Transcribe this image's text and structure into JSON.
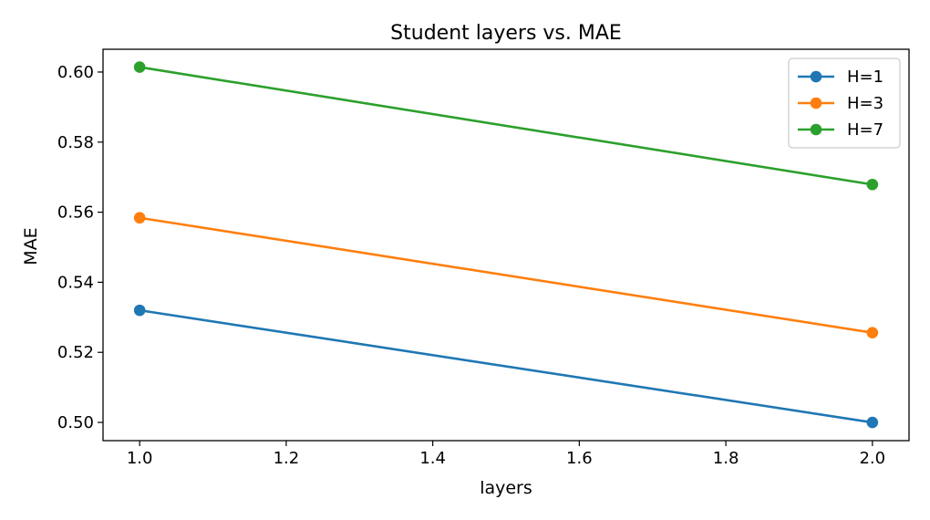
{
  "chart_data": {
    "type": "line",
    "title": "Student layers vs. MAE",
    "xlabel": "layers",
    "ylabel": "MAE",
    "x": [
      1.0,
      2.0
    ],
    "xlim": [
      0.95,
      2.05
    ],
    "ylim": [
      0.4948,
      0.6065
    ],
    "xticks": [
      1.0,
      1.2,
      1.4,
      1.6,
      1.8,
      2.0
    ],
    "xtick_labels": [
      "1.0",
      "1.2",
      "1.4",
      "1.6",
      "1.8",
      "2.0"
    ],
    "yticks": [
      0.5,
      0.52,
      0.54,
      0.56,
      0.58,
      0.6
    ],
    "ytick_labels": [
      "0.50",
      "0.52",
      "0.54",
      "0.56",
      "0.58",
      "0.60"
    ],
    "grid": false,
    "legend_position": "top-right",
    "series": [
      {
        "name": "H=1",
        "color": "#1f77b4",
        "values": [
          0.532,
          0.5
        ]
      },
      {
        "name": "H=3",
        "color": "#ff7f0e",
        "values": [
          0.5584,
          0.5256
        ]
      },
      {
        "name": "H=7",
        "color": "#2ca02c",
        "values": [
          0.6014,
          0.5679
        ]
      }
    ]
  }
}
